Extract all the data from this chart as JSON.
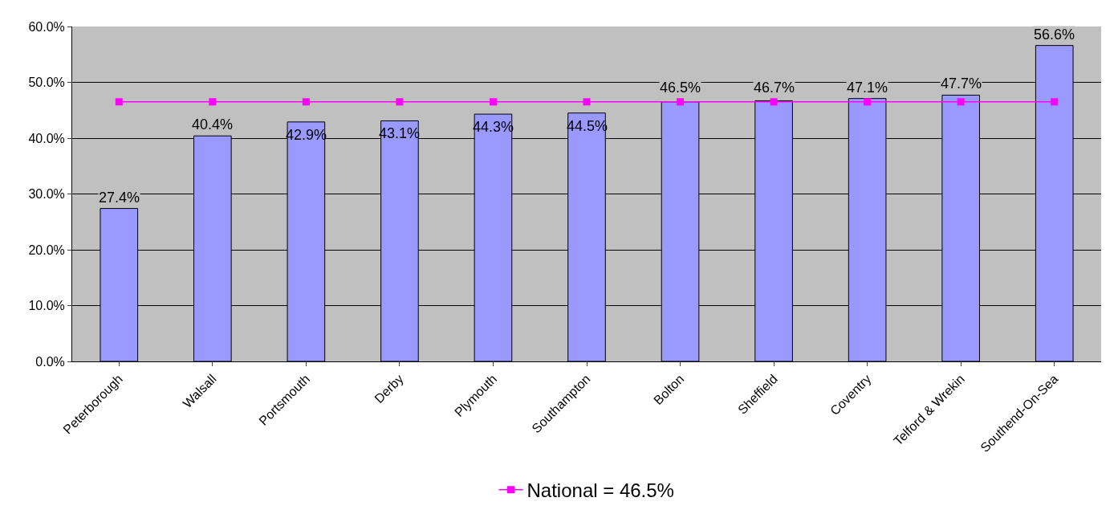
{
  "chart_data": {
    "type": "bar",
    "categories": [
      "Peterborough",
      "Walsall",
      "Portsmouth",
      "Derby",
      "Plymouth",
      "Southampton",
      "Bolton",
      "Sheffield",
      "Coventry",
      "Telford & Wrekin",
      "Southend-On-Sea"
    ],
    "series": [
      {
        "color": "#9999ff",
        "values": [
          27.4,
          40.4,
          42.9,
          43.1,
          44.3,
          44.5,
          46.5,
          46.7,
          47.1,
          47.7,
          56.6
        ],
        "value_labels": [
          "27.4%",
          "40.4%",
          "42.9%",
          "43.1%",
          "44.3%",
          "44.5%",
          "46.5%",
          "46.7%",
          "47.1%",
          "47.7%",
          "56.6%"
        ]
      },
      {
        "type": "line",
        "name": "National = 46.5%",
        "color": "#ff00ff",
        "marker": "square",
        "values": [
          46.5,
          46.5,
          46.5,
          46.5,
          46.5,
          46.5,
          46.5,
          46.5,
          46.5,
          46.5,
          46.5
        ]
      }
    ],
    "ylim": [
      0,
      60
    ],
    "yticks": [
      {
        "value": 0,
        "label": "0.0%"
      },
      {
        "value": 10,
        "label": "10.0%"
      },
      {
        "value": 20,
        "label": "20.0%"
      },
      {
        "value": 30,
        "label": "30.0%"
      },
      {
        "value": 40,
        "label": "40.0%"
      },
      {
        "value": 50,
        "label": "50.0%"
      },
      {
        "value": 60,
        "label": "60.0%"
      }
    ],
    "grid": "y",
    "legend": "bottom"
  }
}
